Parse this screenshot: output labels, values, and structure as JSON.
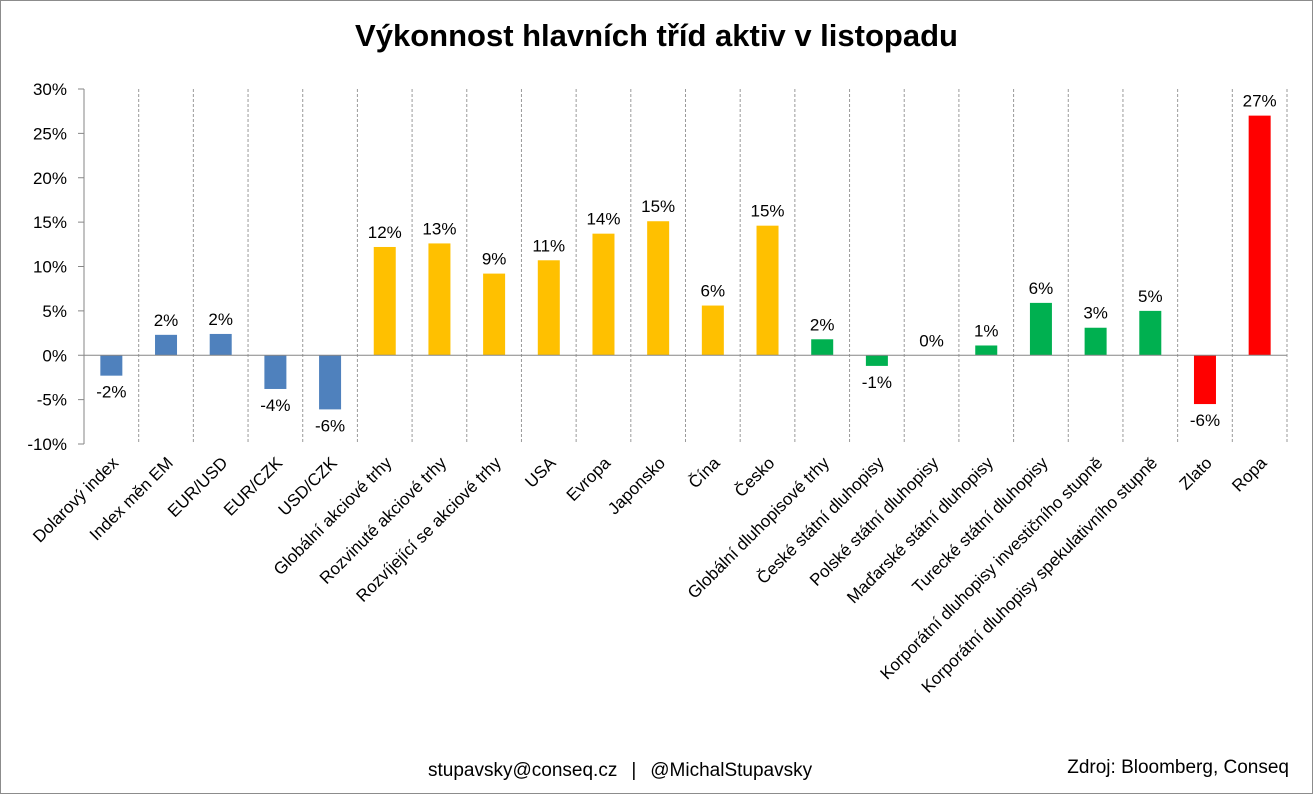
{
  "chart_data": {
    "type": "bar",
    "title": "Výkonnost hlavních tříd aktiv v listopadu",
    "xlabel": "",
    "ylabel": "",
    "ylim": [
      -10,
      30
    ],
    "yticks": [
      -10,
      -5,
      0,
      5,
      10,
      15,
      20,
      25,
      30
    ],
    "ytick_labels": [
      "-10%",
      "-5%",
      "0%",
      "5%",
      "10%",
      "15%",
      "20%",
      "25%",
      "30%"
    ],
    "grid": "vertical dashed between categories",
    "legend": "none",
    "categories": [
      "Dolarový index",
      "Index měn EM",
      "EUR/USD",
      "EUR/CZK",
      "USD/CZK",
      "Globální akciové trhy",
      "Rozvinuté akciové trhy",
      "Rozvíjející se akciové trhy",
      "USA",
      "Evropa",
      "Japonsko",
      "Čína",
      "Česko",
      "Globální dluhopisové trhy",
      "České státní dluhopisy",
      "Polské státní dluhopisy",
      "Maďarské státní dluhopisy",
      "Turecké státní dluhopisy",
      "Korporátní dluhopisy investičního stupně",
      "Korporátní dluhopisy spekulativního stupně",
      "Zlato",
      "Ropa"
    ],
    "values": [
      -2.3,
      2.3,
      2.4,
      -3.8,
      -6.1,
      12.2,
      12.6,
      9.2,
      10.7,
      13.7,
      15.1,
      5.6,
      14.6,
      1.8,
      -1.2,
      0.0,
      1.1,
      5.9,
      3.1,
      5.0,
      -5.5,
      27.0
    ],
    "data_labels": [
      "-2%",
      "2%",
      "2%",
      "-4%",
      "-6%",
      "12%",
      "13%",
      "9%",
      "11%",
      "14%",
      "15%",
      "6%",
      "15%",
      "2%",
      "-1%",
      "0%",
      "1%",
      "6%",
      "3%",
      "5%",
      "-6%",
      "27%"
    ],
    "bar_colors": [
      "#4f81bd",
      "#4f81bd",
      "#4f81bd",
      "#4f81bd",
      "#4f81bd",
      "#ffc000",
      "#ffc000",
      "#ffc000",
      "#ffc000",
      "#ffc000",
      "#ffc000",
      "#ffc000",
      "#ffc000",
      "#00b050",
      "#00b050",
      "#00b050",
      "#00b050",
      "#00b050",
      "#00b050",
      "#00b050",
      "#ff0000",
      "#ff0000"
    ]
  },
  "footer": {
    "email": "stupavsky@conseq.cz",
    "separator": "|",
    "twitter": "@MichalStupavsky",
    "source": "Zdroj: Bloomberg, Conseq"
  }
}
